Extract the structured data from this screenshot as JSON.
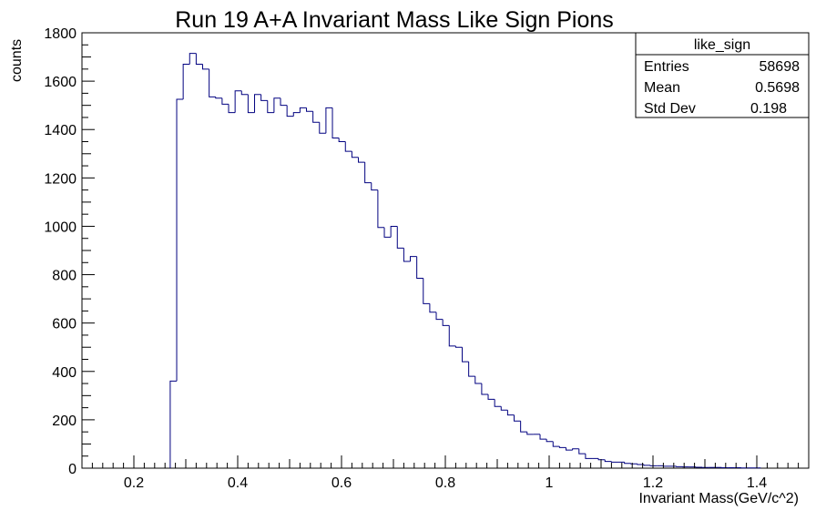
{
  "chart_data": {
    "type": "histogram",
    "title": "Run 19 A+A Invariant Mass Like Sign Pions",
    "xlabel": "Invariant Mass(GeV/c^2)",
    "ylabel": "counts",
    "xlim": [
      0.1,
      1.5
    ],
    "ylim": [
      0,
      1800
    ],
    "x_ticks": [
      0.2,
      0.4,
      0.6,
      0.8,
      1.0,
      1.2,
      1.4
    ],
    "x_tick_labels": [
      "0.2",
      "0.4",
      "0.6",
      "0.8",
      "1",
      "1.2",
      "1.4"
    ],
    "y_ticks": [
      0,
      200,
      400,
      600,
      800,
      1000,
      1200,
      1400,
      1600,
      1800
    ],
    "y_tick_labels": [
      "0",
      "200",
      "400",
      "600",
      "800",
      "1000",
      "1200",
      "1400",
      "1600",
      "1800"
    ],
    "bin_start": 0.27,
    "bin_width": 0.0125,
    "values": [
      360,
      1525,
      1670,
      1715,
      1670,
      1650,
      1535,
      1530,
      1505,
      1470,
      1560,
      1545,
      1470,
      1545,
      1520,
      1470,
      1530,
      1500,
      1455,
      1470,
      1490,
      1475,
      1430,
      1385,
      1490,
      1365,
      1350,
      1310,
      1285,
      1265,
      1180,
      1150,
      995,
      955,
      1000,
      910,
      855,
      875,
      785,
      680,
      645,
      615,
      590,
      505,
      500,
      440,
      380,
      350,
      305,
      285,
      255,
      240,
      220,
      195,
      150,
      140,
      140,
      120,
      110,
      90,
      85,
      75,
      80,
      60,
      40,
      40,
      35,
      28,
      25,
      25,
      20,
      18,
      15,
      12,
      10,
      10,
      8,
      8,
      6,
      5,
      5,
      4,
      3,
      3,
      3,
      2,
      2,
      2,
      1,
      1,
      1
    ],
    "line_color": "#000080",
    "grid": false,
    "legend": "none",
    "stats_box": {
      "name": "like_sign",
      "rows": [
        {
          "label": "Entries",
          "value": "58698"
        },
        {
          "label": "Mean",
          "value": "0.5698"
        },
        {
          "label": "Std Dev",
          "value": "0.198"
        }
      ]
    }
  }
}
